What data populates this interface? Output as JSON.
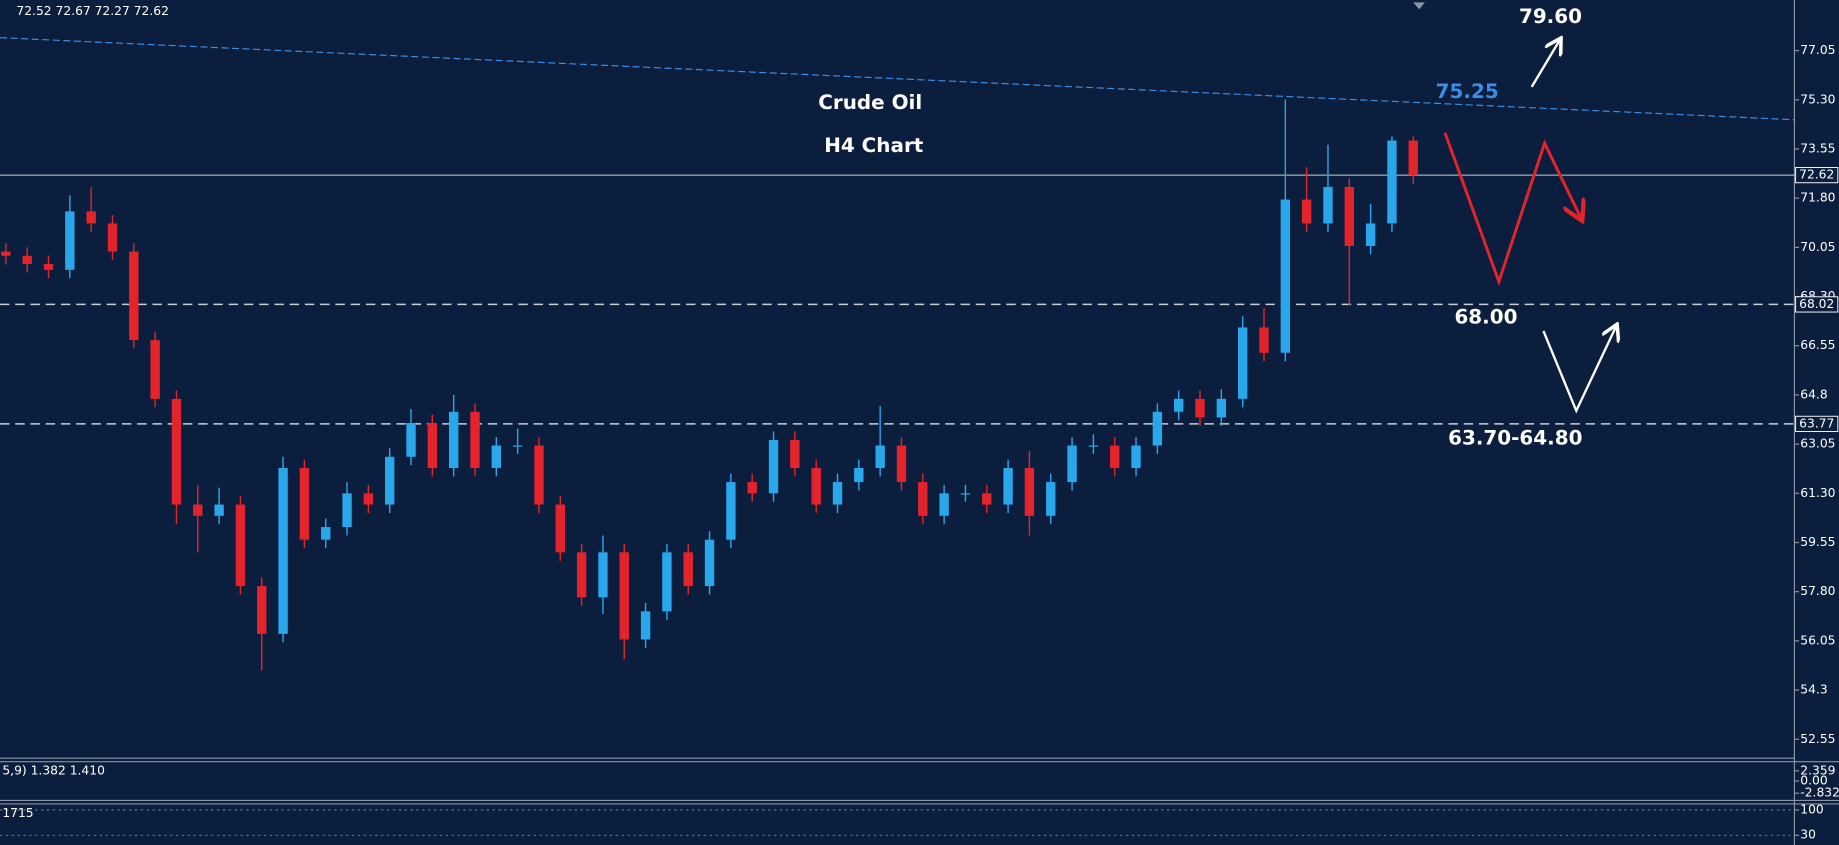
{
  "chart_data": {
    "type": "candlestick",
    "title": "Crude Oil",
    "subtitle": "H4 Chart",
    "header": "72.52 72.67 72.27 72.62",
    "annotations": [
      "79.60",
      "75.25",
      "68.00",
      "63.70-64.80"
    ],
    "up_color": "#2aa6ea",
    "down_color": "#e3242b",
    "open": [
      69.9,
      69.75,
      69.46,
      69.25,
      71.33,
      70.9,
      69.9,
      66.75,
      64.66,
      60.9,
      60.5,
      60.9,
      58.0,
      56.3,
      62.2,
      59.65,
      60.1,
      61.3,
      60.9,
      62.6,
      63.8,
      62.2,
      64.2,
      62.2,
      63.0,
      63.0,
      60.9,
      59.2,
      57.6,
      59.2,
      56.1,
      57.1,
      59.2,
      58.0,
      59.65,
      61.7,
      61.3,
      63.2,
      62.2,
      60.9,
      61.7,
      62.2,
      63.0,
      61.7,
      60.5,
      61.3,
      61.3,
      60.9,
      62.2,
      60.5,
      61.7,
      63.0,
      63.0,
      62.2,
      63.0,
      64.2,
      64.66,
      64.0,
      64.66,
      67.2,
      66.3,
      71.75,
      70.9,
      72.2,
      70.1,
      70.9,
      73.85
    ],
    "high": [
      70.2,
      70.05,
      69.76,
      71.9,
      72.2,
      71.2,
      70.2,
      67.05,
      64.96,
      61.6,
      61.5,
      61.2,
      58.3,
      62.6,
      62.5,
      60.4,
      61.7,
      61.6,
      62.9,
      64.3,
      64.1,
      64.8,
      64.5,
      63.3,
      63.6,
      63.3,
      61.2,
      59.5,
      59.8,
      59.5,
      57.4,
      59.5,
      59.5,
      59.95,
      62.0,
      62.0,
      63.5,
      63.5,
      62.5,
      62.0,
      62.5,
      64.4,
      63.3,
      62.0,
      61.6,
      61.6,
      61.6,
      62.5,
      62.8,
      62.0,
      63.3,
      63.4,
      63.3,
      63.3,
      64.5,
      64.96,
      64.96,
      65.0,
      67.6,
      67.9,
      75.3,
      72.9,
      73.7,
      72.5,
      71.6,
      74.0,
      74.0
    ],
    "low": [
      69.45,
      69.16,
      68.95,
      68.95,
      70.6,
      69.6,
      66.45,
      64.36,
      60.2,
      59.2,
      60.2,
      57.7,
      55.0,
      56.0,
      59.35,
      59.35,
      59.8,
      60.6,
      60.6,
      62.3,
      61.9,
      61.9,
      61.9,
      61.9,
      62.7,
      60.6,
      58.9,
      57.3,
      57.0,
      55.4,
      55.8,
      56.8,
      57.7,
      57.7,
      59.35,
      61.0,
      61.0,
      61.9,
      60.6,
      60.6,
      61.4,
      61.9,
      61.4,
      60.2,
      60.2,
      61.0,
      60.6,
      60.6,
      59.8,
      60.2,
      61.4,
      62.7,
      61.9,
      61.9,
      62.7,
      63.9,
      63.7,
      63.7,
      64.36,
      66.0,
      66.0,
      70.6,
      70.6,
      68.0,
      69.8,
      70.6,
      72.3
    ],
    "close": [
      69.75,
      69.46,
      69.25,
      71.33,
      70.9,
      69.9,
      66.75,
      64.66,
      60.9,
      60.5,
      60.9,
      58.0,
      56.3,
      62.2,
      59.65,
      60.1,
      61.3,
      60.9,
      62.6,
      63.8,
      62.2,
      64.2,
      62.2,
      63.0,
      63.0,
      60.9,
      59.2,
      57.6,
      59.2,
      56.1,
      57.1,
      59.2,
      58.0,
      59.65,
      61.7,
      61.3,
      63.2,
      62.2,
      60.9,
      61.7,
      62.2,
      63.0,
      61.7,
      60.5,
      61.3,
      61.3,
      60.9,
      62.2,
      60.5,
      61.7,
      63.0,
      63.0,
      62.2,
      63.0,
      64.2,
      64.66,
      64.0,
      64.66,
      67.2,
      66.3,
      71.75,
      70.9,
      72.2,
      70.1,
      70.9,
      73.85,
      72.62
    ],
    "ylim": [
      51.92,
      78.85
    ],
    "yticks": [
      77.05,
      {
        "value": 75.3,
        "label": "75.30"
      },
      73.55,
      {
        "value": 71.8,
        "label": "71.80"
      },
      70.05,
      {
        "value": 68.3,
        "label": "68.30"
      },
      66.55,
      64.8,
      63.05,
      {
        "value": 61.3,
        "label": "61.30"
      },
      59.55,
      {
        "value": 57.8,
        "label": "57.80"
      },
      56.05,
      54.3,
      52.55
    ],
    "price_lines": [
      {
        "value": 72.62,
        "style": "solid"
      },
      {
        "value": 68.02,
        "style": "dashed"
      },
      {
        "value": 63.77,
        "style": "dashed"
      }
    ],
    "trendline": {
      "start": 77.51,
      "end": 74.59,
      "color": "#3a8ee6"
    },
    "macd": {
      "label": "5,9) 1.382 1.410",
      "ylim": [
        -4.5,
        4.5
      ],
      "yticks": [
        2.359,
        {
          "value": 0,
          "label": "0.00"
        },
        -2.832
      ]
    },
    "rsi": {
      "label": "1715",
      "ylim": [
        3,
        116.7
      ],
      "yticks": [
        100,
        30
      ]
    }
  }
}
